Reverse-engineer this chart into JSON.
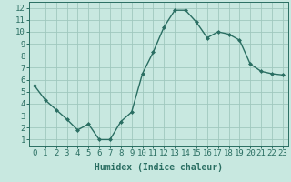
{
  "x": [
    0,
    1,
    2,
    3,
    4,
    5,
    6,
    7,
    8,
    9,
    10,
    11,
    12,
    13,
    14,
    15,
    16,
    17,
    18,
    19,
    20,
    21,
    22,
    23
  ],
  "y": [
    5.5,
    4.3,
    3.5,
    2.7,
    1.8,
    2.3,
    1.0,
    1.0,
    2.5,
    3.3,
    6.5,
    8.3,
    10.4,
    11.8,
    11.8,
    10.8,
    9.5,
    10.0,
    9.8,
    9.3,
    7.3,
    6.7,
    6.5,
    6.4
  ],
  "line_color": "#2a6e62",
  "marker": "D",
  "marker_size": 2.0,
  "bg_color": "#c8e8e0",
  "grid_color": "#a0c8be",
  "xlabel": "Humidex (Indice chaleur)",
  "xlim": [
    -0.5,
    23.5
  ],
  "ylim": [
    0.5,
    12.5
  ],
  "xticks": [
    0,
    1,
    2,
    3,
    4,
    5,
    6,
    7,
    8,
    9,
    10,
    11,
    12,
    13,
    14,
    15,
    16,
    17,
    18,
    19,
    20,
    21,
    22,
    23
  ],
  "yticks": [
    1,
    2,
    3,
    4,
    5,
    6,
    7,
    8,
    9,
    10,
    11,
    12
  ],
  "xlabel_fontsize": 7,
  "tick_fontsize": 6.5,
  "linewidth": 1.0
}
